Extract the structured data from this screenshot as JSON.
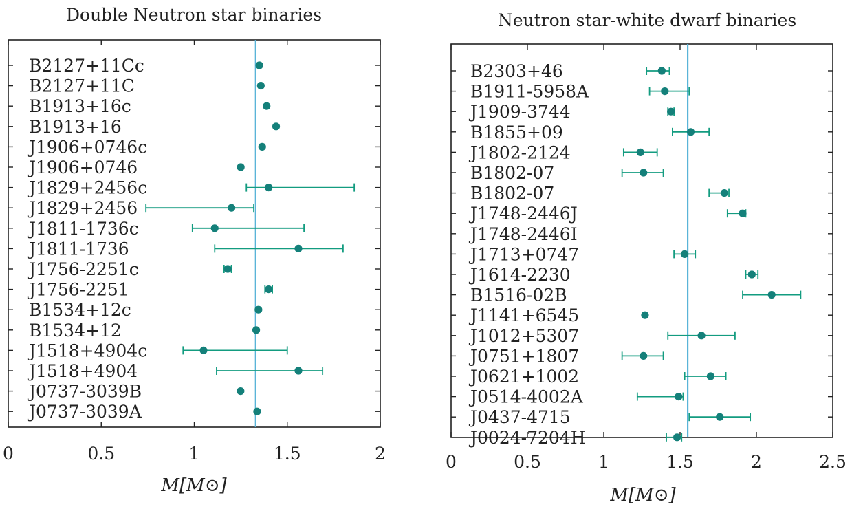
{
  "chart_data": [
    {
      "type": "scatter",
      "title": "Double Neutron star binaries",
      "xlabel": "M[M⊙]",
      "xlim": [
        0,
        2
      ],
      "xticks": [
        "0",
        "0.5",
        "1",
        "1.5",
        "2"
      ],
      "reference_line_x": 1.33,
      "grid": false,
      "colors": {
        "points": "#14807a",
        "errorbars": "#139c80",
        "reference_line": "#5ab4d8"
      },
      "points": [
        {
          "label": "B2127+11Cc",
          "mass": 1.35,
          "err_low": null,
          "err_high": null
        },
        {
          "label": "B2127+11C",
          "mass": 1.358,
          "err_low": null,
          "err_high": null
        },
        {
          "label": "B1913+16c",
          "mass": 1.389,
          "err_low": null,
          "err_high": null
        },
        {
          "label": "B1913+16",
          "mass": 1.44,
          "err_low": null,
          "err_high": null
        },
        {
          "label": "J1906+0746c",
          "mass": 1.365,
          "err_low": null,
          "err_high": null
        },
        {
          "label": "J1906+0746",
          "mass": 1.25,
          "err_low": null,
          "err_high": null
        },
        {
          "label": "J1829+2456c",
          "mass": 1.4,
          "err_low": 1.28,
          "err_high": 1.86
        },
        {
          "label": "J1829+2456",
          "mass": 1.2,
          "err_low": 0.74,
          "err_high": 1.32
        },
        {
          "label": "J1811-1736c",
          "mass": 1.11,
          "err_low": 0.99,
          "err_high": 1.59
        },
        {
          "label": "J1811-1736",
          "mass": 1.56,
          "err_low": 1.11,
          "err_high": 1.8
        },
        {
          "label": "J1756-2251c",
          "mass": 1.18,
          "err_low": 1.16,
          "err_high": 1.2
        },
        {
          "label": "J1756-2251",
          "mass": 1.4,
          "err_low": 1.38,
          "err_high": 1.42
        },
        {
          "label": "B1534+12c",
          "mass": 1.345,
          "err_low": null,
          "err_high": null
        },
        {
          "label": "B1534+12",
          "mass": 1.333,
          "err_low": null,
          "err_high": null
        },
        {
          "label": "J1518+4904c",
          "mass": 1.05,
          "err_low": 0.94,
          "err_high": 1.5
        },
        {
          "label": "J1518+4904",
          "mass": 1.56,
          "err_low": 1.12,
          "err_high": 1.69
        },
        {
          "label": "J0737-3039B",
          "mass": 1.249,
          "err_low": null,
          "err_high": null
        },
        {
          "label": "J0737-3039A",
          "mass": 1.338,
          "err_low": null,
          "err_high": null
        }
      ]
    },
    {
      "type": "scatter",
      "title": "Neutron star-white dwarf binaries",
      "xlabel": "M[M⊙]",
      "xlim": [
        0,
        2.5
      ],
      "xticks": [
        "0",
        "0.5",
        "1",
        "1.5",
        "2",
        "2.5"
      ],
      "reference_line_x": 1.55,
      "grid": false,
      "colors": {
        "points": "#14807a",
        "errorbars": "#139c80",
        "reference_line": "#5ab4d8"
      },
      "points": [
        {
          "label": "B2303+46",
          "mass": 1.38,
          "err_low": 1.28,
          "err_high": 1.43
        },
        {
          "label": "B1911-5958A",
          "mass": 1.4,
          "err_low": 1.3,
          "err_high": 1.56
        },
        {
          "label": "J1909-3744",
          "mass": 1.44,
          "err_low": 1.42,
          "err_high": 1.46
        },
        {
          "label": "B1855+09",
          "mass": 1.57,
          "err_low": 1.45,
          "err_high": 1.69
        },
        {
          "label": "J1802-2124",
          "mass": 1.24,
          "err_low": 1.13,
          "err_high": 1.35
        },
        {
          "label": "B1802-07",
          "mass": 1.26,
          "err_low": 1.12,
          "err_high": 1.39
        },
        {
          "label": "B1802-07",
          "mass": 1.79,
          "err_low": 1.69,
          "err_high": 1.82
        },
        {
          "label": "J1748-2446J",
          "mass": 1.91,
          "err_low": 1.81,
          "err_high": 1.93
        },
        {
          "label": "J1748-2446I",
          "mass": null,
          "err_low": null,
          "err_high": null
        },
        {
          "label": "J1713+0747",
          "mass": 1.53,
          "err_low": 1.46,
          "err_high": 1.6
        },
        {
          "label": "J1614-2230",
          "mass": 1.97,
          "err_low": 1.93,
          "err_high": 2.01
        },
        {
          "label": "B1516-02B",
          "mass": 2.1,
          "err_low": 1.91,
          "err_high": 2.29
        },
        {
          "label": "J1141+6545",
          "mass": 1.27,
          "err_low": null,
          "err_high": null
        },
        {
          "label": "J1012+5307",
          "mass": 1.64,
          "err_low": 1.42,
          "err_high": 1.86
        },
        {
          "label": "J0751+1807",
          "mass": 1.26,
          "err_low": 1.12,
          "err_high": 1.39
        },
        {
          "label": "J0621+1002",
          "mass": 1.7,
          "err_low": 1.53,
          "err_high": 1.8
        },
        {
          "label": "J0514-4002A",
          "mass": 1.49,
          "err_low": 1.22,
          "err_high": 1.52
        },
        {
          "label": "J0437-4715",
          "mass": 1.76,
          "err_low": 1.56,
          "err_high": 1.96
        },
        {
          "label": "J0024-7204H",
          "mass": 1.48,
          "err_low": 1.41,
          "err_high": 1.51
        }
      ]
    }
  ]
}
